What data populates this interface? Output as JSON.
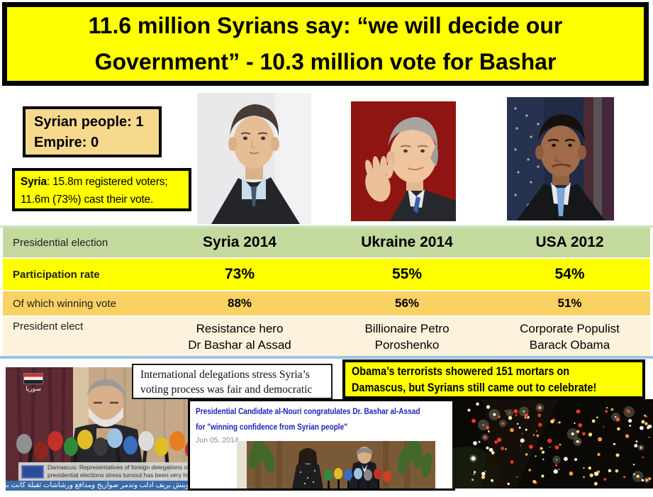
{
  "banner": {
    "line1": "11.6 million Syrians say: “we will decide our",
    "line2": "Government” - 10.3 million  vote for Bashar"
  },
  "score_box": {
    "line1": "Syrian people: 1",
    "line2": "Empire: 0"
  },
  "voters_box": {
    "bold": "Syria",
    "rest": ": 15.8m registered voters;",
    "line2": "11.6m (73%) cast their vote."
  },
  "photos": {
    "assad": "portrait-bashar-al-assad",
    "poroshenko": "portrait-petro-poroshenko-waving",
    "obama": "portrait-barack-obama-frowning"
  },
  "table": {
    "corner_label": "Presidential election",
    "columns": [
      "Syria 2014",
      "Ukraine 2014",
      "USA 2012"
    ],
    "rows": [
      {
        "label": "Participation rate",
        "values": [
          "73%",
          "55%",
          "54%"
        ]
      },
      {
        "label": "Of which winning vote",
        "values": [
          "88%",
          "56%",
          "51%"
        ]
      },
      {
        "label": "President elect",
        "values": [
          "Resistance hero\nDr Bashar al Assad",
          "Billionaire Petro\nPoroshenko",
          "Corporate Populist\nBarack Obama"
        ]
      }
    ]
  },
  "press_photo": {
    "logo_text": "سوريا",
    "caption_line1": "Damascus: Representatives of foreign delegations ob",
    "caption_line2": "presidential elections stress turnout has been very hig",
    "ticker": "ون وبنش بريف ادلب وتدمر صواريخ ومدافع ورشاشات ثقيلة كانت بحو"
  },
  "newspaper_box": {
    "line1": "International delegations stress Syria’s",
    "line2": "voting process was fair and democratic"
  },
  "alnouri_box": {
    "headline_line1": "Presidential Candidate al-Nouri congratulates Dr. Bashar al-Assad",
    "headline_line2": "for \"winning confidence from Syrian people\"",
    "date": "Jun 05, 2014"
  },
  "obama_box": {
    "line1": "Obama’s terrorists showered 151 mortars on",
    "line2": "Damascus, but Syrians still came out to celebrate!"
  },
  "colors": {
    "banner_yellow": "#FFFF00",
    "score_box_tan": "#F7D98E",
    "table_header_green": "#C4D99E",
    "participation_yellow": "#FFFF00",
    "winning_gold": "#FAD163",
    "elect_cream": "#FDF3DC",
    "table_border_blue": "#9DC3E6",
    "headline_blue": "#2020BF",
    "ticker_blue": "#3A6BA8"
  }
}
